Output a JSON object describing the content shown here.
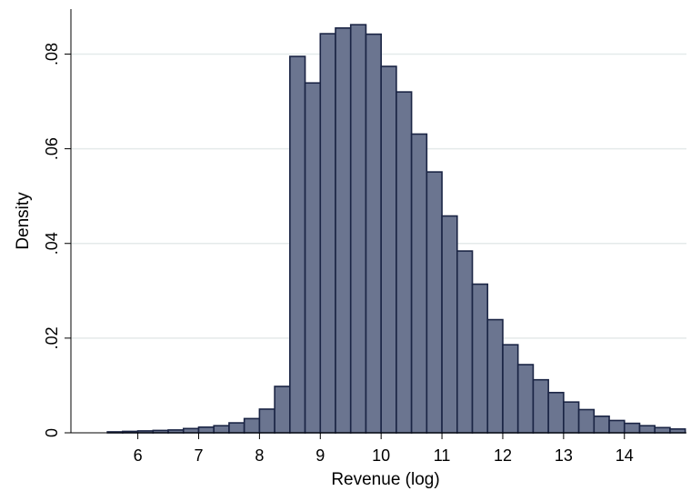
{
  "chart_data": {
    "type": "bar",
    "title": "",
    "xlabel": "Revenue (log)",
    "ylabel": "Density",
    "xlim": [
      4.9,
      15.02
    ],
    "ylim": [
      0,
      0.0895
    ],
    "x_ticks": [
      {
        "value": 6,
        "label": "6"
      },
      {
        "value": 7,
        "label": "7"
      },
      {
        "value": 8,
        "label": "8"
      },
      {
        "value": 9,
        "label": "9"
      },
      {
        "value": 10,
        "label": "10"
      },
      {
        "value": 11,
        "label": "11"
      },
      {
        "value": 12,
        "label": "12"
      },
      {
        "value": 13,
        "label": "13"
      },
      {
        "value": 14,
        "label": "14"
      }
    ],
    "y_ticks": [
      {
        "value": 0,
        "label": "0"
      },
      {
        "value": 0.02,
        "label": ".02"
      },
      {
        "value": 0.04,
        "label": ".04"
      },
      {
        "value": 0.06,
        "label": ".06"
      },
      {
        "value": 0.08,
        "label": ".08"
      }
    ],
    "grid": true,
    "legend": "none",
    "colors": {
      "bar_fill": "#6b7590",
      "bar_stroke": "#1a2444",
      "grid": "#e4eaea",
      "axis": "#000000"
    },
    "bin_width": 0.25,
    "bins": [
      {
        "x0": 5.5,
        "density": 0.0002
      },
      {
        "x0": 5.75,
        "density": 0.0003
      },
      {
        "x0": 6.0,
        "density": 0.0004
      },
      {
        "x0": 6.25,
        "density": 0.0005
      },
      {
        "x0": 6.5,
        "density": 0.0006
      },
      {
        "x0": 6.75,
        "density": 0.0009
      },
      {
        "x0": 7.0,
        "density": 0.0012
      },
      {
        "x0": 7.25,
        "density": 0.0015
      },
      {
        "x0": 7.5,
        "density": 0.0021
      },
      {
        "x0": 7.75,
        "density": 0.003
      },
      {
        "x0": 8.0,
        "density": 0.005
      },
      {
        "x0": 8.25,
        "density": 0.0098
      },
      {
        "x0": 8.5,
        "density": 0.0795
      },
      {
        "x0": 8.75,
        "density": 0.0739
      },
      {
        "x0": 9.0,
        "density": 0.0843
      },
      {
        "x0": 9.25,
        "density": 0.0855
      },
      {
        "x0": 9.5,
        "density": 0.0862
      },
      {
        "x0": 9.75,
        "density": 0.0842
      },
      {
        "x0": 10.0,
        "density": 0.0774
      },
      {
        "x0": 10.25,
        "density": 0.072
      },
      {
        "x0": 10.5,
        "density": 0.0631
      },
      {
        "x0": 10.75,
        "density": 0.0551
      },
      {
        "x0": 11.0,
        "density": 0.0458
      },
      {
        "x0": 11.25,
        "density": 0.0384
      },
      {
        "x0": 11.5,
        "density": 0.0314
      },
      {
        "x0": 11.75,
        "density": 0.0239
      },
      {
        "x0": 12.0,
        "density": 0.0186
      },
      {
        "x0": 12.25,
        "density": 0.0144
      },
      {
        "x0": 12.5,
        "density": 0.0112
      },
      {
        "x0": 12.75,
        "density": 0.0085
      },
      {
        "x0": 13.0,
        "density": 0.0065
      },
      {
        "x0": 13.25,
        "density": 0.0049
      },
      {
        "x0": 13.5,
        "density": 0.0035
      },
      {
        "x0": 13.75,
        "density": 0.0026
      },
      {
        "x0": 14.0,
        "density": 0.002
      },
      {
        "x0": 14.25,
        "density": 0.0015
      },
      {
        "x0": 14.5,
        "density": 0.0011
      },
      {
        "x0": 14.75,
        "density": 0.0008
      }
    ]
  }
}
